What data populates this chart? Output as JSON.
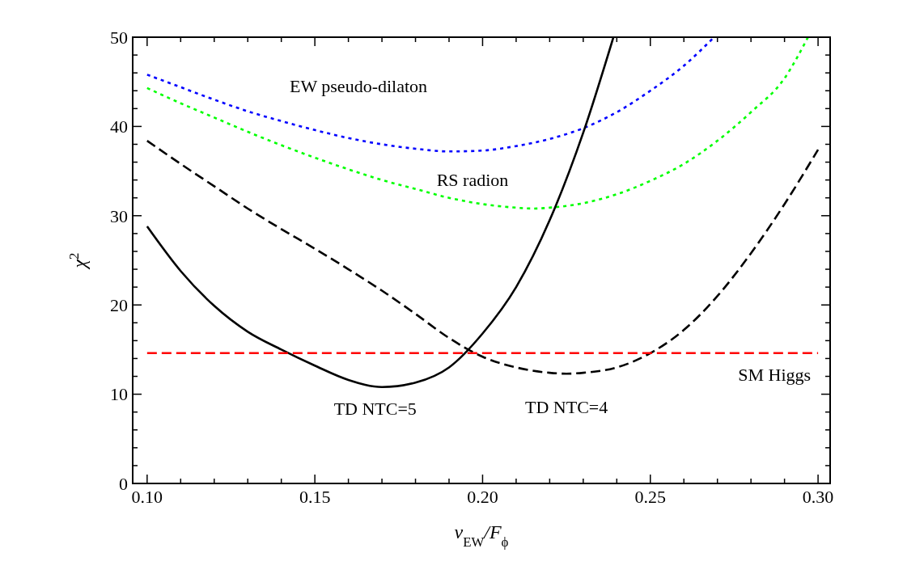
{
  "chart_data": {
    "type": "line",
    "xlabel": "v$_{EW}$/F$_{ϕ}$",
    "ylabel": "χ$^{2}$",
    "xlim": [
      0.0957,
      0.3036
    ],
    "ylim": [
      0,
      50
    ],
    "xticks": [
      {
        "value": 0.1,
        "label": "0.10"
      },
      {
        "value": 0.11,
        "label": null
      },
      {
        "value": 0.12,
        "label": null
      },
      {
        "value": 0.13,
        "label": null
      },
      {
        "value": 0.14,
        "label": null
      },
      {
        "value": 0.15,
        "label": "0.15"
      },
      {
        "value": 0.16,
        "label": null
      },
      {
        "value": 0.17,
        "label": null
      },
      {
        "value": 0.18,
        "label": null
      },
      {
        "value": 0.19,
        "label": null
      },
      {
        "value": 0.2,
        "label": "0.20"
      },
      {
        "value": 0.21,
        "label": null
      },
      {
        "value": 0.22,
        "label": null
      },
      {
        "value": 0.23,
        "label": null
      },
      {
        "value": 0.24,
        "label": null
      },
      {
        "value": 0.25,
        "label": "0.25"
      },
      {
        "value": 0.26,
        "label": null
      },
      {
        "value": 0.27,
        "label": null
      },
      {
        "value": 0.28,
        "label": null
      },
      {
        "value": 0.29,
        "label": null
      },
      {
        "value": 0.3,
        "label": "0.30"
      }
    ],
    "yticks": [
      0,
      {
        "value": 2,
        "label": null
      },
      {
        "value": 4,
        "label": null
      },
      {
        "value": 6,
        "label": null
      },
      {
        "value": 8,
        "label": null
      },
      10,
      {
        "value": 12,
        "label": null
      },
      {
        "value": 14,
        "label": null
      },
      {
        "value": 16,
        "label": null
      },
      {
        "value": 18,
        "label": null
      },
      20,
      {
        "value": 22,
        "label": null
      },
      {
        "value": 24,
        "label": null
      },
      {
        "value": 26,
        "label": null
      },
      {
        "value": 28,
        "label": null
      },
      30,
      {
        "value": 32,
        "label": null
      },
      {
        "value": 34,
        "label": null
      },
      {
        "value": 36,
        "label": null
      },
      {
        "value": 38,
        "label": null
      },
      40,
      {
        "value": 42,
        "label": null
      },
      {
        "value": 44,
        "label": null
      },
      {
        "value": 46,
        "label": null
      },
      {
        "value": 48,
        "label": null
      },
      50
    ],
    "annotations": [
      {
        "text": "SM Higgs",
        "x": 0.287,
        "y": 14.6
      }
    ],
    "grid": false,
    "marker": "none",
    "series": [
      {
        "name": "EW pseudo-dilaton",
        "color": "#0000ff",
        "line_style": "dotted",
        "x": [
          0.1,
          0.11,
          0.12,
          0.13,
          0.14,
          0.15,
          0.16,
          0.17,
          0.18,
          0.19,
          0.2,
          0.21,
          0.22,
          0.23,
          0.24,
          0.25,
          0.26,
          0.269
        ],
        "values": [
          45.8,
          44.4,
          43.0,
          41.7,
          40.6,
          39.6,
          38.7,
          38.0,
          37.5,
          37.2,
          37.3,
          37.8,
          38.6,
          39.8,
          41.6,
          44.0,
          46.8,
          50
        ]
      },
      {
        "name": "RS radion",
        "color": "#00ff00",
        "line_style": "dotted",
        "x": [
          0.1,
          0.11,
          0.12,
          0.13,
          0.14,
          0.15,
          0.16,
          0.17,
          0.18,
          0.19,
          0.2,
          0.21,
          0.215,
          0.22,
          0.23,
          0.24,
          0.25,
          0.26,
          0.27,
          0.28,
          0.29,
          0.297
        ],
        "values": [
          44.3,
          42.6,
          41.0,
          39.4,
          37.9,
          36.5,
          35.2,
          34.0,
          33.0,
          32.0,
          31.3,
          30.9,
          30.8,
          30.9,
          31.4,
          32.4,
          33.9,
          35.8,
          38.4,
          41.6,
          45.4,
          50
        ]
      },
      {
        "name": "TD NTC=4",
        "color": "#000000",
        "line_style": "dashed",
        "x": [
          0.1,
          0.11,
          0.12,
          0.13,
          0.14,
          0.15,
          0.16,
          0.17,
          0.18,
          0.19,
          0.2,
          0.21,
          0.22,
          0.225,
          0.23,
          0.24,
          0.25,
          0.26,
          0.27,
          0.28,
          0.29,
          0.3
        ],
        "values": [
          38.4,
          35.8,
          33.3,
          30.8,
          28.5,
          26.3,
          24.0,
          21.6,
          19.0,
          16.3,
          14.2,
          13.0,
          12.4,
          12.3,
          12.4,
          13.0,
          14.6,
          17.2,
          21.0,
          25.8,
          31.3,
          37.4
        ]
      },
      {
        "name": "TD NTC=5",
        "color": "#000000",
        "line_style": "solid",
        "x": [
          0.1,
          0.11,
          0.12,
          0.13,
          0.14,
          0.15,
          0.16,
          0.17,
          0.18,
          0.19,
          0.2,
          0.21,
          0.22,
          0.23,
          0.239
        ],
        "values": [
          28.8,
          23.8,
          19.9,
          17.0,
          15.0,
          13.2,
          11.6,
          10.8,
          11.3,
          13.0,
          16.8,
          22.0,
          29.5,
          39.3,
          50
        ]
      },
      {
        "color": "#ff0000",
        "line_style": "dashed",
        "x": [
          0.1,
          0.3
        ],
        "values": [
          14.6,
          14.6
        ]
      }
    ]
  }
}
